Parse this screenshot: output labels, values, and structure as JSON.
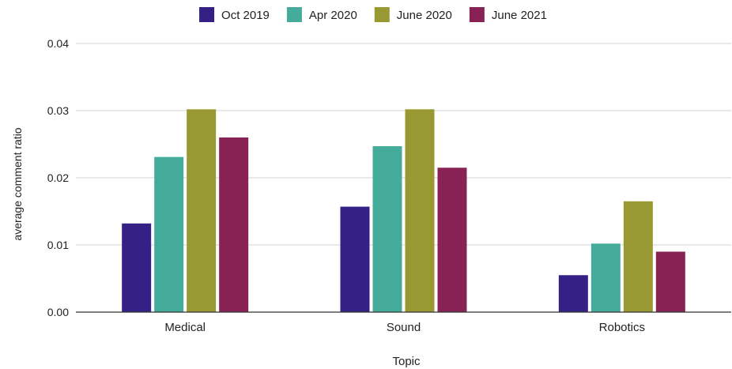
{
  "chart_data": {
    "type": "bar",
    "title": "",
    "xlabel": "Topic",
    "ylabel": "average comment ratio",
    "categories": [
      "Medical",
      "Sound",
      "Robotics"
    ],
    "series": [
      {
        "name": "Oct 2019",
        "color": "#352185",
        "values": [
          0.0132,
          0.0157,
          0.0055
        ]
      },
      {
        "name": "Apr 2020",
        "color": "#45ab9a",
        "values": [
          0.0231,
          0.0247,
          0.0102
        ]
      },
      {
        "name": "June 2020",
        "color": "#999933",
        "values": [
          0.0302,
          0.0302,
          0.0165
        ]
      },
      {
        "name": "June 2021",
        "color": "#882255",
        "values": [
          0.026,
          0.0215,
          0.009
        ]
      }
    ],
    "ylim": [
      0,
      0.04
    ],
    "yticks": [
      "0.00",
      "0.01",
      "0.02",
      "0.03",
      "0.04"
    ],
    "grid": true,
    "legend_position": "top-center"
  }
}
